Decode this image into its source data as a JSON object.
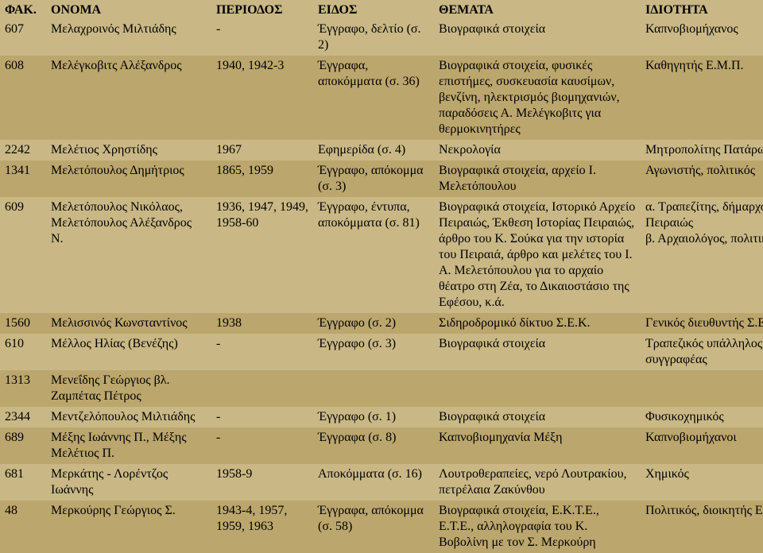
{
  "headers": {
    "fak": "ΦΑΚ.",
    "onoma": "ΟΝΟΜΑ",
    "periods": "ΠΕΡΙΟΔΟΣ",
    "eidos": "ΕΙΔΟΣ",
    "themata": "ΘΕΜΑΤΑ",
    "idiotita": "ΙΔΙΟΤΗΤΑ"
  },
  "rows": [
    {
      "band": "light",
      "fak": "607",
      "onoma": "Μελαχροινός Μιλτιάδης",
      "periods": "-",
      "eidos": "Έγγραφο, δελτίο (σ. 2)",
      "themata": "Βιογραφικά στοιχεία",
      "idiotita": "Καπνοβιομήχανος"
    },
    {
      "band": "dark",
      "fak": "608",
      "onoma": "Μελέγκοβιτς Αλέξανδρος",
      "periods": "1940, 1942-3",
      "eidos": "Έγγραφα, αποκόμματα (σ. 36)",
      "themata": "Βιογραφικά στοιχεία, φυσικές επιστήμες, συσκευασία καυσίμων, βενζίνη, ηλεκτρισμός βιομηχανιών, παραδόσεις Α. Μελέγκοβιτς για θερμοκινητήρες",
      "idiotita": "Καθηγητής Ε.Μ.Π."
    },
    {
      "band": "light",
      "fak": "2242",
      "onoma": "Μελέτιος Χρηστίδης",
      "periods": "1967",
      "eidos": "Εφημερίδα (σ. 4)",
      "themata": "Νεκρολογία",
      "idiotita": "Μητροπολίτης Πατάρων"
    },
    {
      "band": "dark",
      "fak": "1341",
      "onoma": "Μελετόπουλος Δημήτριος",
      "periods": "1865, 1959",
      "eidos": "Έγγραφο, απόκομμα (σ. 3)",
      "themata": "Βιογραφικά στοιχεία, αρχείο Ι. Μελετόπουλου",
      "idiotita": "Αγωνιστής, πολιτικός"
    },
    {
      "band": "light",
      "fak": "609",
      "onoma": "Μελετόπουλος Νικόλαος, Μελετόπουλος Αλέξανδρος Ν.",
      "periods": "1936, 1947, 1949, 1958-60",
      "eidos": "Έγγραφο, έντυπα, αποκόμματα (σ. 81)",
      "themata": "Βιογραφικά στοιχεία, Ιστορικό Αρχείο Πειραιώς, Έκθεση Ιστορίας Πειραιώς, άρθρο του Κ. Σούκα για την ιστορία του Πειραιά, άρθρο και μελέτες του Ι. Α. Μελετόπουλου για το αρχαίο θέατρο στη Ζέα, το Δικαιοστάσιο της Εφέσου, κ.ά.",
      "idiotita": "α. Τραπεζίτης, δήμαρχος Πειραιώς\nβ. Αρχαιολόγος, πολιτικός"
    },
    {
      "band": "dark",
      "fak": "1560",
      "onoma": "Μελισσινός Κωνσταντίνος",
      "periods": "1938",
      "eidos": "Έγγραφο (σ. 2)",
      "themata": "Σιδηροδρομικό δίκτυο Σ.Ε.Κ.",
      "idiotita": "Γενικός διευθυντής Σ.Ε.Κ."
    },
    {
      "band": "light",
      "fak": "610",
      "onoma": "Μέλλος Ηλίας (Βενέζης)",
      "periods": "-",
      "eidos": "Έγγραφο (σ. 3)",
      "themata": "Βιογραφικά στοιχεία",
      "idiotita": "Τραπεζικός υπάλληλος, συγγραφέας"
    },
    {
      "band": "dark",
      "fak": "1313",
      "onoma": "Μενεΐδης Γεώργιος βλ. Ζαμπέτας Πέτρος",
      "periods": "",
      "eidos": "",
      "themata": "",
      "idiotita": ""
    },
    {
      "band": "light",
      "fak": "2344",
      "onoma": "Μεντζελόπουλος Μιλτιάδης",
      "periods": "-",
      "eidos": "Έγγραφο (σ. 1)",
      "themata": "Βιογραφικά στοιχεία",
      "idiotita": "Φυσικοχημικός"
    },
    {
      "band": "dark",
      "fak": "689",
      "onoma": "Μέξης Ιωάννης Π., Μέξης Μελέτιος Π.",
      "periods": "-",
      "eidos": "Έγγραφα (σ. 8)",
      "themata": "Καπνοβιομηχανία Μέξη",
      "idiotita": "Καπνοβιομήχανοι"
    },
    {
      "band": "light",
      "fak": "681",
      "onoma": "Μερκάτης - Λορέντζος Ιωάννης",
      "periods": "1958-9",
      "eidos": "Αποκόμματα (σ. 16)",
      "themata": "Λουτροθεραπείες, νερό Λουτρακίου, πετρέλαια Ζακύνθου",
      "idiotita": "Χημικός"
    },
    {
      "band": "dark",
      "fak": "48",
      "onoma": "Μερκούρης Γεώργιος Σ.",
      "periods": "1943-4, 1957, 1959, 1963",
      "eidos": "Έγγραφα, απόκομμα (σ. 58)",
      "themata": "Βιογραφικά στοιχεία, Ε.Κ.Τ.Ε., Ε.Τ.Ε., αλληλογραφία του Κ. Βοβολίνη με τον Σ. Μερκούρη",
      "idiotita": "Πολιτικός, διοικητής Ε.Τ.Ε."
    }
  ],
  "style": {
    "background_color": "#c9b885",
    "band_dark_color": "#bba66d",
    "band_light_color": "#c9b885",
    "text_color": "#000000",
    "header_fontsize": 14,
    "cell_fontsize": 14,
    "font_family": "Times New Roman"
  }
}
